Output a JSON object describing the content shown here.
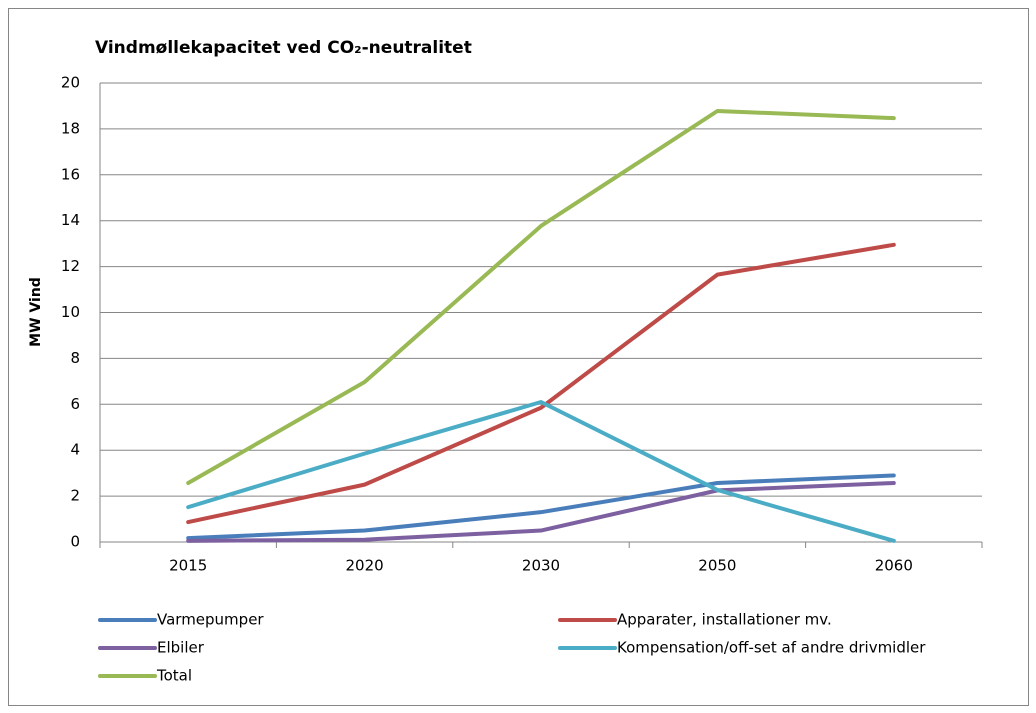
{
  "chart_data": {
    "type": "line",
    "title": "Vindmøllekapacitet ved CO₂-neutralitet",
    "y_label": "MW Vind",
    "categories": [
      "2015",
      "2020",
      "2030",
      "2050",
      "2060"
    ],
    "series": [
      {
        "name": "Varmepumper",
        "color": "#4a7ebb",
        "values": [
          0.17,
          0.5,
          1.3,
          2.57,
          2.9
        ]
      },
      {
        "name": "Apparater, installationer mv.",
        "color": "#be4b48",
        "values": [
          0.87,
          2.5,
          5.85,
          11.65,
          12.95
        ]
      },
      {
        "name": "Elbiler",
        "color": "#7d60a0",
        "values": [
          0.05,
          0.1,
          0.5,
          2.25,
          2.57
        ]
      },
      {
        "name": "Kompensation/off-set af andre drivmidler",
        "color": "#4bacc6",
        "values": [
          1.52,
          3.85,
          6.1,
          2.27,
          0.05
        ]
      },
      {
        "name": "Total",
        "color": "#98b954",
        "values": [
          2.57,
          6.97,
          13.77,
          18.78,
          18.47
        ]
      }
    ],
    "ylim": [
      0,
      20
    ],
    "yticks": [
      0,
      2,
      4,
      6,
      8,
      10,
      12,
      14,
      16,
      18,
      20
    ],
    "grid": true,
    "legend": "bottom"
  }
}
